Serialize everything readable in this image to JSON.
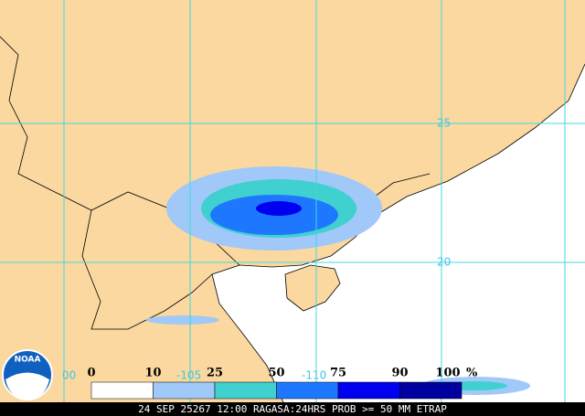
{
  "map": {
    "grid_labels": {
      "lat": [
        "25",
        "20"
      ],
      "lon": [
        "-105",
        "-110",
        "00"
      ]
    },
    "legend": {
      "labels": [
        "0",
        "10",
        "25",
        "50",
        "75",
        "90",
        "100"
      ],
      "unit": "%",
      "colors": [
        "#ffffff",
        "#a0c8f8",
        "#40d0d0",
        "#1e78ff",
        "#0000f0",
        "#0000a0"
      ]
    },
    "logo": "NOAA",
    "footer": "24 SEP 25267 12:00 RAGASA:24HRS PROB >= 50 MM ETRAP"
  }
}
